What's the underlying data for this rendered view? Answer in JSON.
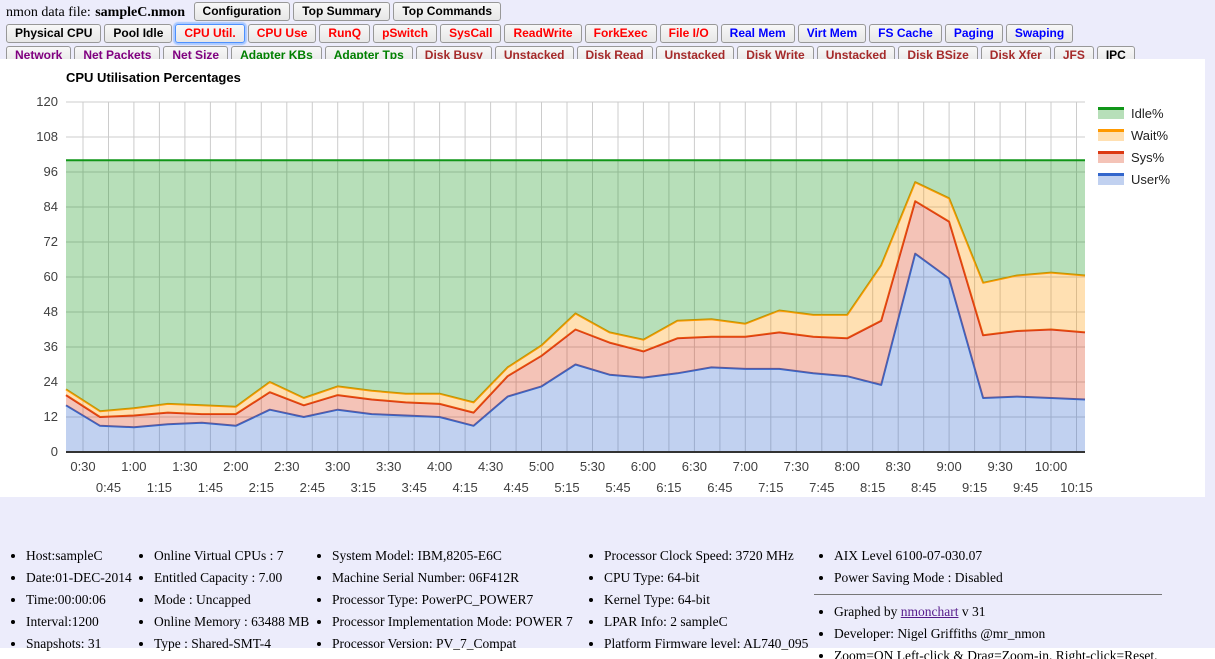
{
  "header": {
    "file_label": "nmon data file:",
    "file_name": "sampleC.nmon",
    "top_buttons": [
      {
        "label": "Configuration",
        "color": "#000000"
      },
      {
        "label": "Top Summary",
        "color": "#000000"
      },
      {
        "label": "Top Commands",
        "color": "#000000"
      }
    ],
    "nav_rows": [
      [
        {
          "label": "Physical CPU",
          "color": "#000000"
        },
        {
          "label": "Pool Idle",
          "color": "#000000"
        },
        {
          "label": "CPU Util.",
          "color": "#ff0000",
          "active": true
        },
        {
          "label": "CPU Use",
          "color": "#ff0000"
        },
        {
          "label": "RunQ",
          "color": "#ff0000"
        },
        {
          "label": "pSwitch",
          "color": "#ff0000"
        },
        {
          "label": "SysCall",
          "color": "#ff0000"
        },
        {
          "label": "ReadWrite",
          "color": "#ff0000"
        },
        {
          "label": "ForkExec",
          "color": "#ff0000"
        },
        {
          "label": "File I/O",
          "color": "#ff0000"
        },
        {
          "label": "Real Mem",
          "color": "#0000ff"
        },
        {
          "label": "Virt Mem",
          "color": "#0000ff"
        },
        {
          "label": "FS Cache",
          "color": "#0000ff"
        },
        {
          "label": "Paging",
          "color": "#0000ff"
        },
        {
          "label": "Swaping",
          "color": "#0000ff"
        }
      ],
      [
        {
          "label": "Network",
          "color": "#800080"
        },
        {
          "label": "Net Packets",
          "color": "#800080"
        },
        {
          "label": "Net Size",
          "color": "#800080"
        },
        {
          "label": "Adapter KBs",
          "color": "#008000"
        },
        {
          "label": "Adapter Tps",
          "color": "#008000"
        },
        {
          "label": "Disk Busy",
          "color": "#a52a2a"
        },
        {
          "label": "Unstacked",
          "color": "#a52a2a"
        },
        {
          "label": "Disk Read",
          "color": "#a52a2a"
        },
        {
          "label": "Unstacked",
          "color": "#a52a2a"
        },
        {
          "label": "Disk Write",
          "color": "#a52a2a"
        },
        {
          "label": "Unstacked",
          "color": "#a52a2a"
        },
        {
          "label": "Disk BSize",
          "color": "#a52a2a"
        },
        {
          "label": "Disk Xfer",
          "color": "#a52a2a"
        },
        {
          "label": "JFS",
          "color": "#a52a2a"
        },
        {
          "label": "IPC",
          "color": "#000000"
        }
      ]
    ]
  },
  "chart_data": {
    "type": "area",
    "stacked": true,
    "title": "CPU Utilisation Percentages",
    "xlabel": "",
    "ylabel": "",
    "ylim": [
      0,
      120
    ],
    "y_ticks": [
      0,
      12,
      24,
      36,
      48,
      60,
      72,
      84,
      96,
      108,
      120
    ],
    "x_domain": [
      20,
      620
    ],
    "x_step": 20,
    "x_unit": "minutes",
    "grid": true,
    "grid_color": "#cccccc",
    "legend_position": "right",
    "legend": [
      "Idle%",
      "Wait%",
      "Sys%",
      "User%"
    ],
    "x_tick_labels": [
      "0:30",
      "0:45",
      "1:00",
      "1:15",
      "1:30",
      "1:45",
      "2:00",
      "2:15",
      "2:30",
      "2:45",
      "3:00",
      "3:15",
      "3:30",
      "3:45",
      "4:00",
      "4:15",
      "4:30",
      "4:45",
      "5:00",
      "5:15",
      "5:30",
      "5:45",
      "6:00",
      "6:15",
      "6:30",
      "6:45",
      "7:00",
      "7:15",
      "7:30",
      "7:45",
      "8:00",
      "8:15",
      "8:30",
      "8:45",
      "9:00",
      "9:15",
      "9:30",
      "9:45",
      "10:00",
      "10:15"
    ],
    "series": [
      {
        "name": "User%",
        "color": "#3366cc",
        "values": [
          16,
          9,
          8.5,
          9.5,
          10,
          9,
          14.5,
          12,
          14.5,
          13,
          12.5,
          12,
          9,
          19,
          22.5,
          30,
          26.5,
          25.5,
          27,
          29,
          28.5,
          28.5,
          27,
          26,
          23,
          68,
          59.5,
          18.5,
          19,
          18.5,
          18
        ]
      },
      {
        "name": "Sys%",
        "color": "#dc3912",
        "values": [
          3.5,
          3,
          4,
          4,
          3,
          4,
          6,
          4,
          5,
          5,
          4.5,
          4.5,
          4.5,
          7,
          10.5,
          12,
          11,
          9,
          12,
          10.5,
          11,
          12.5,
          12.5,
          13,
          22,
          18,
          19.5,
          21.5,
          22.5,
          23.5,
          23
        ]
      },
      {
        "name": "Wait%",
        "color": "#ff9900",
        "values": [
          2,
          2,
          2.5,
          3,
          3,
          2.5,
          3.5,
          2.5,
          3,
          3,
          3,
          3.5,
          3.5,
          3,
          3.5,
          5.5,
          3.5,
          4,
          6,
          6,
          4.5,
          7.5,
          7.5,
          8,
          19,
          6.5,
          8,
          18,
          19,
          19.5,
          19.5
        ]
      },
      {
        "name": "Idle%",
        "color": "#109618",
        "values": [
          78.5,
          86,
          85,
          83.5,
          84,
          84.5,
          76,
          81.5,
          77.5,
          79,
          80,
          80,
          83,
          71,
          63.5,
          52.5,
          59,
          61.5,
          55,
          54.5,
          56,
          51.5,
          53,
          53,
          36,
          7.5,
          13,
          42,
          39.5,
          38.5,
          39.5
        ]
      }
    ]
  },
  "info": {
    "columns": [
      {
        "items": [
          "Host:sampleC",
          "Date:01-DEC-2014",
          "Time:00:00:06",
          "Interval:1200",
          "Snapshots: 31"
        ]
      },
      {
        "items": [
          "Online Virtual CPUs : 7",
          "Entitled Capacity : 7.00",
          "Mode : Uncapped",
          "Online Memory : 63488 MB",
          "Type : Shared-SMT-4"
        ]
      },
      {
        "items": [
          "System Model: IBM,8205-E6C",
          "Machine Serial Number: 06F412R",
          "Processor Type: PowerPC_POWER7",
          "Processor Implementation Mode: POWER 7",
          "Processor Version: PV_7_Compat"
        ]
      },
      {
        "items": [
          "Processor Clock Speed: 3720 MHz",
          "CPU Type: 64-bit",
          "Kernel Type: 64-bit",
          "LPAR Info: 2 sampleC",
          "Platform Firmware level: AL740_095"
        ]
      },
      {
        "items": [
          "AIX Level 6100-07-030.07",
          "Power Saving Mode : Disabled"
        ],
        "divider": true,
        "items2": [
          {
            "prefix": "Graphed by ",
            "link_text": "nmonchart",
            "suffix": " v 31"
          },
          "Developer: Nigel Griffiths @mr_nmon",
          "Zoom=ON Left-click & Drag=Zoom-in. Right-click=Reset."
        ]
      }
    ]
  }
}
